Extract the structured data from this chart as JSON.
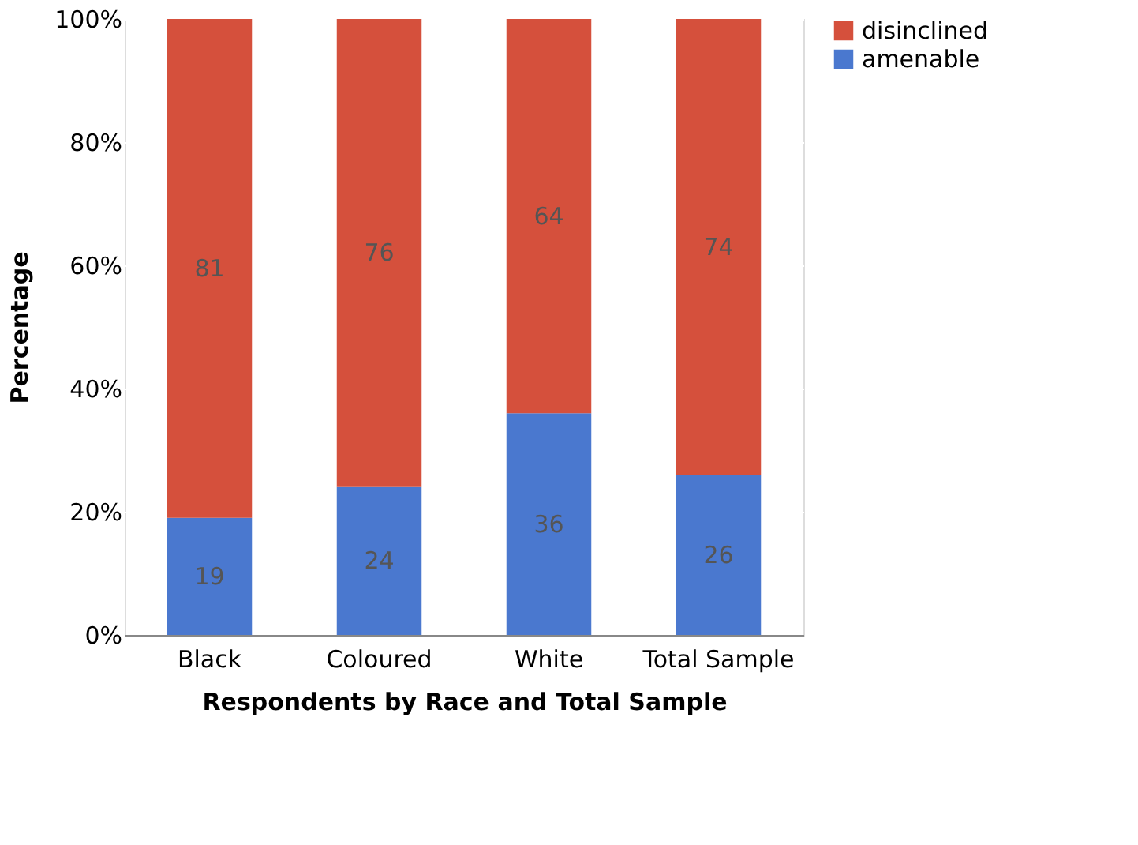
{
  "chart_data": {
    "type": "bar",
    "stacked": true,
    "xlabel": "Respondents by Race and Total Sample",
    "ylabel": "Percentage",
    "categories": [
      "Black",
      "Coloured",
      "White",
      "Total Sample"
    ],
    "series": [
      {
        "name": "amenable",
        "color": "#4a78cf",
        "values": [
          19,
          24,
          36,
          26
        ]
      },
      {
        "name": "disinclined",
        "color": "#d5503c",
        "values": [
          81,
          76,
          64,
          74
        ]
      }
    ],
    "ylim": [
      0,
      100
    ],
    "yticks": [
      {
        "value": 0,
        "label": "0%"
      },
      {
        "value": 20,
        "label": "20%"
      },
      {
        "value": 40,
        "label": "40%"
      },
      {
        "value": 60,
        "label": "60%"
      },
      {
        "value": 80,
        "label": "80%"
      },
      {
        "value": 100,
        "label": "100%"
      }
    ],
    "grid": "y",
    "legend": "right",
    "data_labels": true
  }
}
